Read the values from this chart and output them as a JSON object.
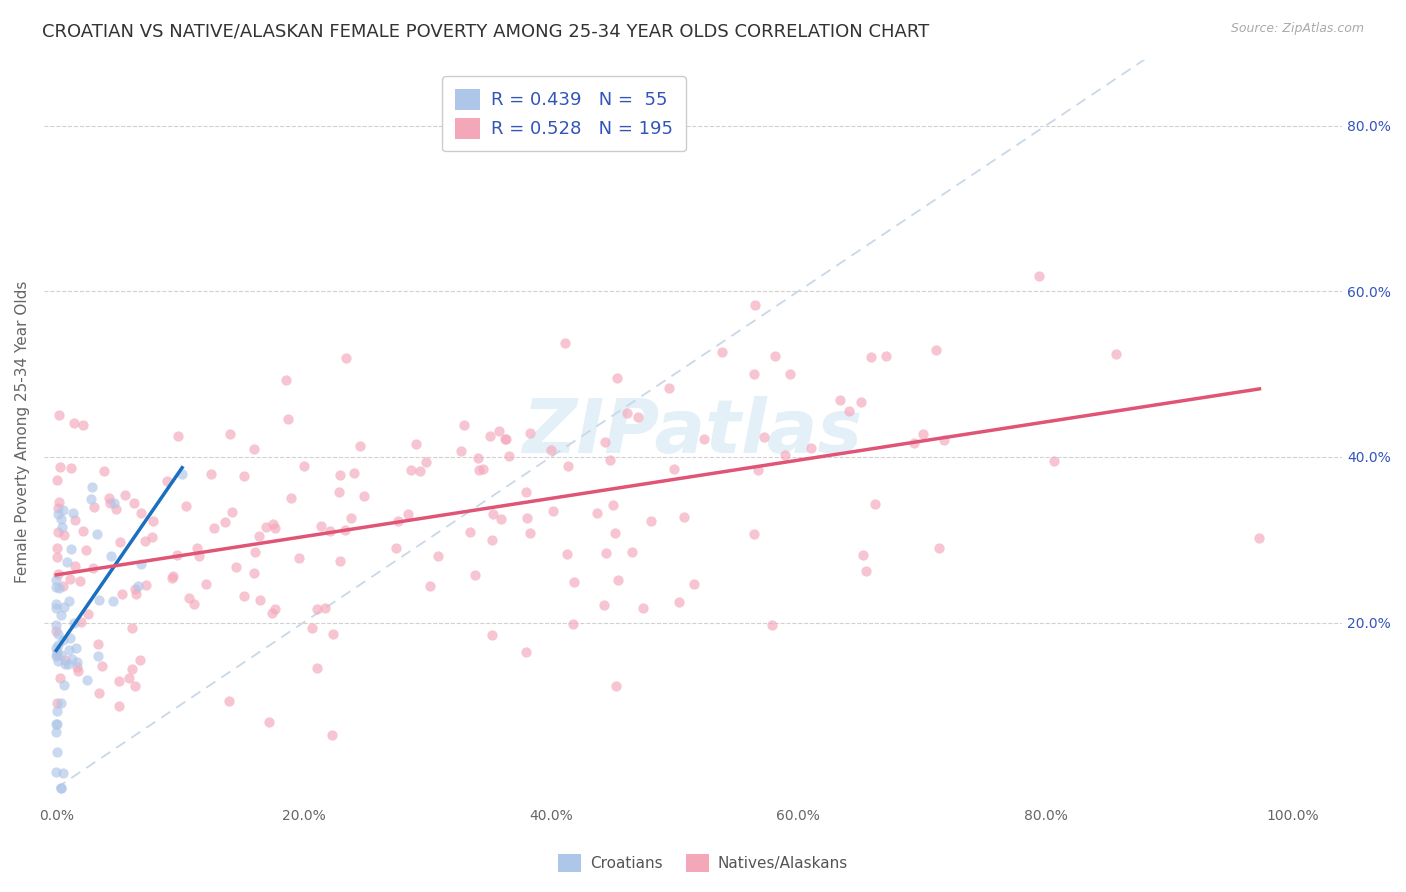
{
  "title": "CROATIAN VS NATIVE/ALASKAN FEMALE POVERTY AMONG 25-34 YEAR OLDS CORRELATION CHART",
  "source": "Source: ZipAtlas.com",
  "ylabel": "Female Poverty Among 25-34 Year Olds",
  "croatian_R": 0.439,
  "croatian_N": 55,
  "native_R": 0.528,
  "native_N": 195,
  "watermark": "ZIPatlas",
  "color_croatian": "#aec6e8",
  "color_native": "#f4a7b9",
  "line_color_croatian": "#1a6fbe",
  "line_color_native": "#e05575",
  "diagonal_color": "#c8d8e8",
  "background_color": "#ffffff",
  "grid_color": "#cccccc",
  "title_color": "#333333",
  "source_color": "#aaaaaa",
  "legend_text_color": "#3355bb",
  "ytick_color": "#3355bb",
  "title_fontsize": 13,
  "axis_label_fontsize": 11,
  "tick_fontsize": 10,
  "legend_fontsize": 13,
  "scatter_alpha": 0.65,
  "scatter_size": 55
}
